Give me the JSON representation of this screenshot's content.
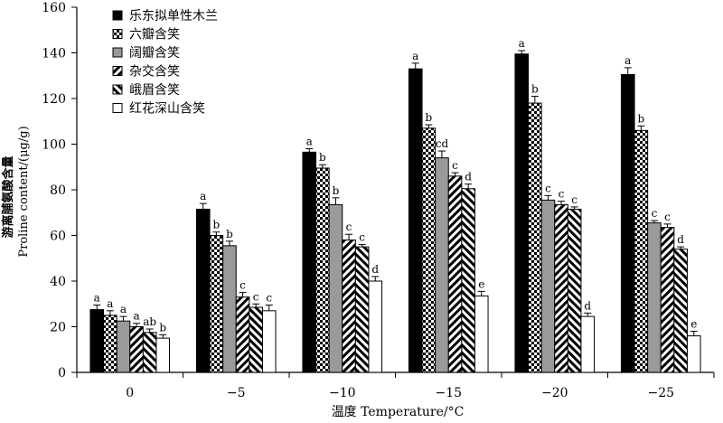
{
  "chart_data": {
    "type": "bar",
    "xlabel": "温度 Temperature/°C",
    "ylabel_cn": "游离脯氨酸含量",
    "ylabel_en": "Proline content/(μg/g)",
    "ylim": [
      0,
      160
    ],
    "yticks": [
      0,
      20,
      40,
      60,
      80,
      100,
      120,
      140,
      160
    ],
    "categories": [
      "0",
      "−5",
      "−10",
      "−15",
      "−20",
      "−25"
    ],
    "legend_position": "top-left",
    "series": [
      {
        "name": "乐东拟单性木兰",
        "pattern": "solid-black",
        "values": [
          27.5,
          71.5,
          96.5,
          133,
          139.5,
          130.5
        ],
        "errors": [
          2,
          2.5,
          1.5,
          2.5,
          1.5,
          3
        ],
        "labels": [
          "a",
          "a",
          "a",
          "a",
          "a",
          "a"
        ]
      },
      {
        "name": "六瓣含笑",
        "pattern": "checker",
        "values": [
          25,
          60,
          89.5,
          107,
          118,
          106
        ],
        "errors": [
          2,
          1.5,
          1.5,
          1.5,
          3,
          2
        ],
        "labels": [
          "a",
          "b",
          "b",
          "b",
          "b",
          "b"
        ]
      },
      {
        "name": "阔瓣含笑",
        "pattern": "solid-gray",
        "values": [
          22.5,
          55.5,
          73.5,
          94,
          75.5,
          65.5
        ],
        "errors": [
          2,
          2,
          3,
          3,
          2,
          1
        ],
        "labels": [
          "a",
          "b",
          "b",
          "cd",
          "c",
          "c"
        ]
      },
      {
        "name": "杂交含笑",
        "pattern": "diag-right",
        "values": [
          20,
          33,
          58,
          86,
          73.5,
          63.5
        ],
        "errors": [
          1.5,
          2,
          2.5,
          1.5,
          1.5,
          1.5
        ],
        "labels": [
          "a",
          "c",
          "c",
          "c",
          "c",
          "c"
        ]
      },
      {
        "name": "峨眉含笑",
        "pattern": "diag-left",
        "values": [
          17.5,
          28.5,
          55,
          80.5,
          71.5,
          54
        ],
        "errors": [
          1.5,
          1.5,
          1,
          2,
          1,
          1
        ],
        "labels": [
          "ab",
          "c",
          "c",
          "d",
          "c",
          "d"
        ]
      },
      {
        "name": "红花深山含笑",
        "pattern": "white",
        "values": [
          15,
          27,
          40,
          33.5,
          24.5,
          16
        ],
        "errors": [
          1.5,
          2.5,
          2,
          2,
          1.5,
          2
        ],
        "labels": [
          "b",
          "c",
          "d",
          "e",
          "d",
          "e"
        ]
      }
    ]
  }
}
